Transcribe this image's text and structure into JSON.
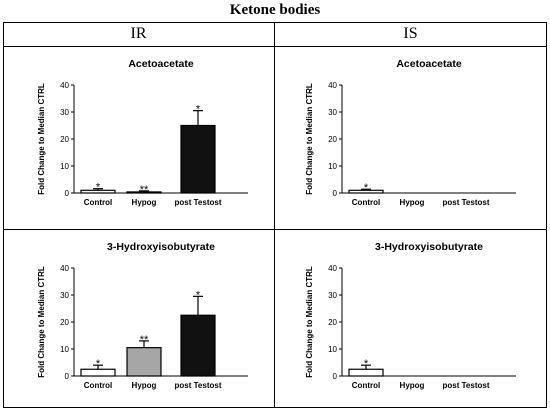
{
  "figure_title": "Ketone bodies",
  "columns": [
    "IR",
    "IS"
  ],
  "chart_data": [
    {
      "type": "bar",
      "column": "IR",
      "title": "Acetoacetate",
      "ylabel": "Fold  Change to  Median CTRL",
      "xlabel": "",
      "categories": [
        "Control",
        "Hypog",
        "post Testost"
      ],
      "values": [
        1.0,
        0.4,
        25.0
      ],
      "errors": [
        0.6,
        0.4,
        5.5
      ],
      "significance": [
        "*",
        "**",
        "*"
      ],
      "bar_colors": [
        "#ffffff",
        "#ffffff",
        "#111111"
      ],
      "ylim": [
        0,
        40
      ],
      "yticks": [
        0,
        10,
        20,
        30,
        40
      ],
      "grid": false
    },
    {
      "type": "bar",
      "column": "IS",
      "title": "Acetoacetate",
      "ylabel": "Fold  Change to  Median CTRL",
      "xlabel": "",
      "categories": [
        "Control",
        "Hypog",
        "post Testost"
      ],
      "values": [
        1.0,
        0,
        0
      ],
      "errors": [
        0.4,
        0,
        0
      ],
      "significance": [
        "*",
        "",
        ""
      ],
      "bar_colors": [
        "#ffffff",
        "#ffffff",
        "#ffffff"
      ],
      "ylim": [
        0,
        40
      ],
      "yticks": [
        0,
        10,
        20,
        30,
        40
      ],
      "grid": false
    },
    {
      "type": "bar",
      "column": "IR",
      "title": "3-Hydroxyisobutyrate",
      "ylabel": "Fold  Change to  Median CTRL",
      "xlabel": "",
      "categories": [
        "Control",
        "Hypog",
        "post Testost"
      ],
      "values": [
        2.5,
        10.5,
        22.5
      ],
      "errors": [
        1.5,
        2.5,
        7.0
      ],
      "significance": [
        "*",
        "**",
        "*"
      ],
      "bar_colors": [
        "#ffffff",
        "#a6a6a6",
        "#111111"
      ],
      "ylim": [
        0,
        40
      ],
      "yticks": [
        0,
        10,
        20,
        30,
        40
      ],
      "grid": false
    },
    {
      "type": "bar",
      "column": "IS",
      "title": "3-Hydroxyisobutyrate",
      "ylabel": "Fold  Change to  Median CTRL",
      "xlabel": "",
      "categories": [
        "Control",
        "Hypog",
        "post Testost"
      ],
      "values": [
        2.5,
        0,
        0
      ],
      "errors": [
        1.5,
        0,
        0
      ],
      "significance": [
        "*",
        "",
        ""
      ],
      "bar_colors": [
        "#ffffff",
        "#ffffff",
        "#ffffff"
      ],
      "ylim": [
        0,
        40
      ],
      "yticks": [
        0,
        10,
        20,
        30,
        40
      ],
      "grid": false
    }
  ]
}
